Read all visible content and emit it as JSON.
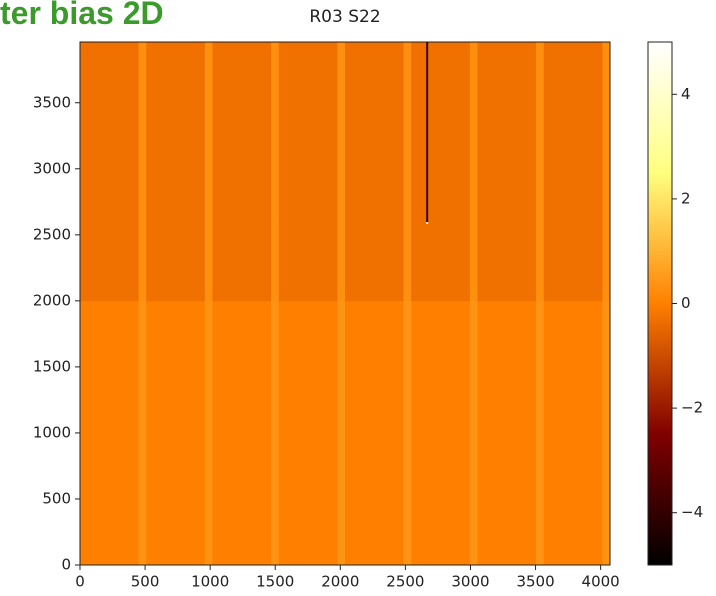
{
  "banner": "ter bias 2D",
  "chart_data": {
    "type": "heatmap",
    "title": "R03 S22",
    "colormap": "afmhot",
    "x_edges": [
      0,
      450,
      509,
      959,
      1018,
      1468,
      1527,
      1977,
      2036,
      2486,
      2545,
      2660,
      2675,
      2995,
      3054,
      3504,
      3563,
      4013,
      4072
    ],
    "y_edges": [
      0,
      2000,
      2585,
      2600,
      3960
    ],
    "values": [
      [
        0,
        0.4,
        0,
        0.4,
        0,
        0.4,
        0,
        0.4,
        0,
        0.4,
        0,
        0,
        0,
        0.4,
        0,
        0.4,
        0,
        0.4
      ],
      [
        -0.3,
        0.3,
        -0.3,
        0.3,
        -0.3,
        0.3,
        -0.3,
        0.3,
        -0.3,
        0.3,
        -0.3,
        -0.3,
        -0.3,
        0.3,
        -0.3,
        0.3,
        -0.3,
        0.3
      ],
      [
        -0.3,
        0.3,
        -0.3,
        0.3,
        -0.3,
        0.3,
        -0.3,
        0.3,
        -0.3,
        0.3,
        -0.3,
        4,
        -0.3,
        0.3,
        -0.3,
        0.3,
        -0.3,
        0.3
      ],
      [
        -0.3,
        0.3,
        -0.3,
        0.3,
        -0.3,
        0.3,
        -0.3,
        0.3,
        -0.3,
        0.3,
        -0.3,
        -4,
        -0.3,
        0.3,
        -0.3,
        0.3,
        -0.3,
        0.3
      ]
    ],
    "xlim": [
      0,
      4072
    ],
    "ylim": [
      0,
      3960
    ],
    "xticks": [
      0,
      500,
      1000,
      1500,
      2000,
      2500,
      3000,
      3500,
      4000
    ],
    "yticks": [
      0,
      500,
      1000,
      1500,
      2000,
      2500,
      3000,
      3500
    ],
    "clim": [
      -5,
      5
    ],
    "cticks": [
      {
        "value": -4,
        "label": "−4"
      },
      {
        "value": -2,
        "label": "−2"
      },
      0,
      2,
      4
    ]
  }
}
